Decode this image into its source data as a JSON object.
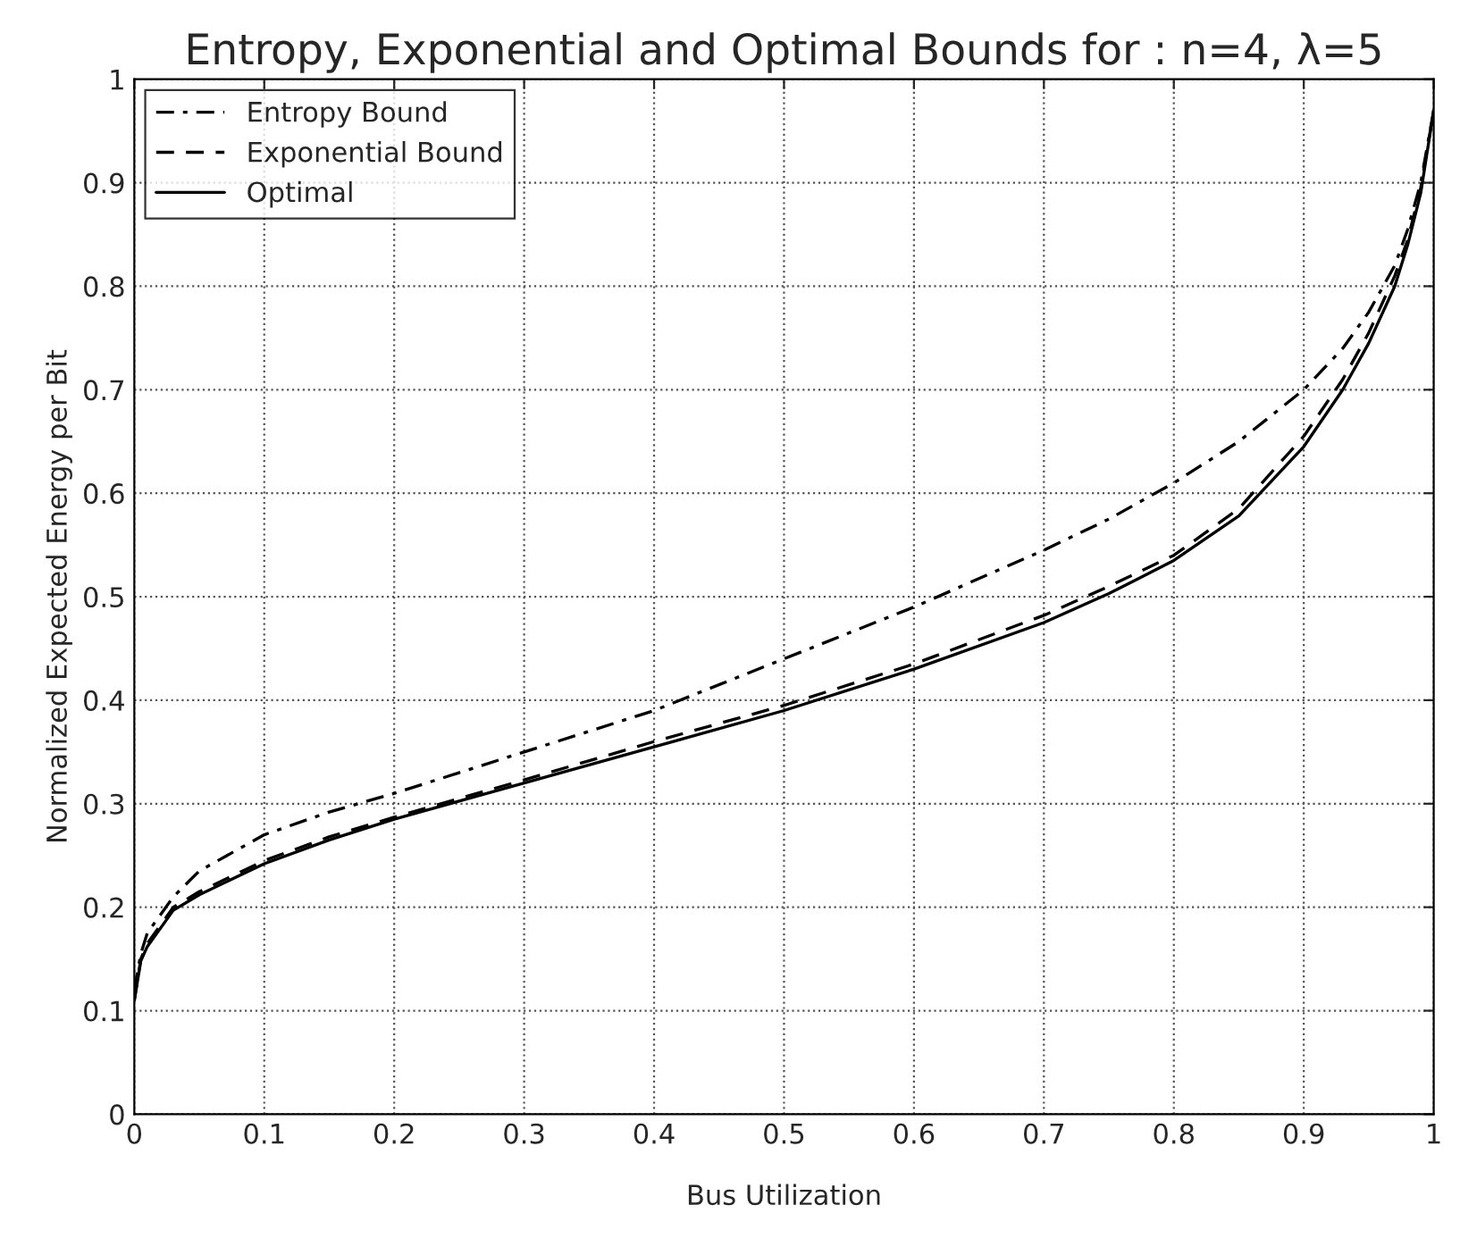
{
  "chart_data": {
    "type": "line",
    "title": "Entropy, Exponential and Optimal Bounds for : n=4, λ=5",
    "xlabel": "Bus Utilization",
    "ylabel": "Normalized Expected Energy per Bit",
    "xlim": [
      0,
      1
    ],
    "ylim": [
      0,
      1
    ],
    "xticks": [
      0,
      0.1,
      0.2,
      0.3,
      0.4,
      0.5,
      0.6,
      0.7,
      0.8,
      0.9,
      1
    ],
    "yticks": [
      0,
      0.1,
      0.2,
      0.3,
      0.4,
      0.5,
      0.6,
      0.7,
      0.8,
      0.9,
      1
    ],
    "grid": true,
    "legend": "top left",
    "marker": "none",
    "x": [
      0,
      0.005,
      0.01,
      0.03,
      0.05,
      0.1,
      0.15,
      0.2,
      0.3,
      0.4,
      0.5,
      0.6,
      0.7,
      0.75,
      0.8,
      0.85,
      0.9,
      0.93,
      0.95,
      0.97,
      0.98,
      0.99,
      1
    ],
    "series": [
      {
        "name": "Entropy Bound",
        "color": "#000000",
        "line_style": "dashdot",
        "values": [
          0.12,
          0.155,
          0.175,
          0.21,
          0.235,
          0.27,
          0.292,
          0.31,
          0.35,
          0.39,
          0.44,
          0.49,
          0.545,
          0.575,
          0.61,
          0.65,
          0.7,
          0.74,
          0.775,
          0.82,
          0.855,
          0.9,
          0.97
        ]
      },
      {
        "name": "Exponential Bound",
        "color": "#000000",
        "line_style": "dashed",
        "values": [
          0.11,
          0.15,
          0.165,
          0.2,
          0.215,
          0.245,
          0.268,
          0.287,
          0.323,
          0.36,
          0.395,
          0.435,
          0.482,
          0.51,
          0.54,
          0.585,
          0.655,
          0.71,
          0.755,
          0.81,
          0.845,
          0.895,
          0.97
        ]
      },
      {
        "name": "Optimal",
        "color": "#000000",
        "line_style": "solid",
        "values": [
          0.11,
          0.148,
          0.162,
          0.197,
          0.212,
          0.242,
          0.265,
          0.285,
          0.32,
          0.355,
          0.39,
          0.43,
          0.475,
          0.503,
          0.535,
          0.578,
          0.645,
          0.7,
          0.745,
          0.8,
          0.84,
          0.89,
          0.97
        ]
      }
    ]
  }
}
